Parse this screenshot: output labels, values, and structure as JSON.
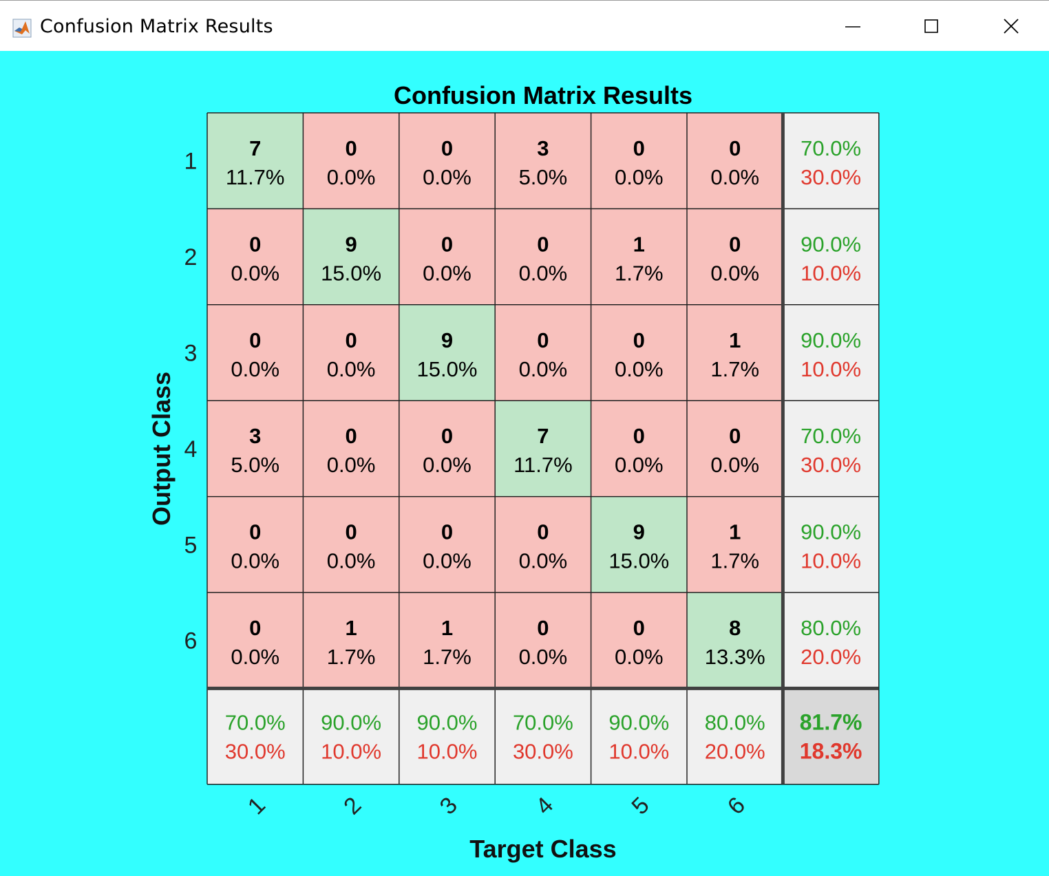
{
  "window": {
    "title": "Confusion Matrix Results",
    "icons": {
      "app": "matlab-icon",
      "minimize": "minimize-icon",
      "maximize": "maximize-icon",
      "close": "close-icon"
    }
  },
  "colors": {
    "figure_bg": "#33ffff",
    "correct_cell": "#bfe6c8",
    "incorrect_cell": "#f8c1bd",
    "summary_cell": "#f0f0f0",
    "overall_cell": "#d9d9d9",
    "green_text": "#2aa22a",
    "red_text": "#e0382d",
    "grid_line": "#222222",
    "separator": "#404040"
  },
  "chart_data": {
    "type": "table",
    "title": "Confusion Matrix Results",
    "xlabel": "Target Class",
    "ylabel": "Output Class",
    "x_tick_labels": [
      "1",
      "2",
      "3",
      "4",
      "5",
      "6"
    ],
    "y_tick_labels": [
      "1",
      "2",
      "3",
      "4",
      "5",
      "6"
    ],
    "counts": [
      [
        7,
        0,
        0,
        3,
        0,
        0
      ],
      [
        0,
        9,
        0,
        0,
        1,
        0
      ],
      [
        0,
        0,
        9,
        0,
        0,
        1
      ],
      [
        3,
        0,
        0,
        7,
        0,
        0
      ],
      [
        0,
        0,
        0,
        0,
        9,
        1
      ],
      [
        0,
        1,
        1,
        0,
        0,
        8
      ]
    ],
    "percents": [
      [
        "11.7%",
        "0.0%",
        "0.0%",
        "5.0%",
        "0.0%",
        "0.0%"
      ],
      [
        "0.0%",
        "15.0%",
        "0.0%",
        "0.0%",
        "1.7%",
        "0.0%"
      ],
      [
        "0.0%",
        "0.0%",
        "15.0%",
        "0.0%",
        "0.0%",
        "1.7%"
      ],
      [
        "5.0%",
        "0.0%",
        "0.0%",
        "11.7%",
        "0.0%",
        "0.0%"
      ],
      [
        "0.0%",
        "0.0%",
        "0.0%",
        "0.0%",
        "15.0%",
        "1.7%"
      ],
      [
        "0.0%",
        "1.7%",
        "1.7%",
        "0.0%",
        "0.0%",
        "13.3%"
      ]
    ],
    "row_summary": [
      [
        "70.0%",
        "30.0%"
      ],
      [
        "90.0%",
        "10.0%"
      ],
      [
        "90.0%",
        "10.0%"
      ],
      [
        "70.0%",
        "30.0%"
      ],
      [
        "90.0%",
        "10.0%"
      ],
      [
        "80.0%",
        "20.0%"
      ]
    ],
    "column_summary": [
      [
        "70.0%",
        "30.0%"
      ],
      [
        "90.0%",
        "10.0%"
      ],
      [
        "90.0%",
        "10.0%"
      ],
      [
        "70.0%",
        "30.0%"
      ],
      [
        "90.0%",
        "10.0%"
      ],
      [
        "80.0%",
        "20.0%"
      ]
    ],
    "overall": [
      "81.7%",
      "18.3%"
    ]
  }
}
